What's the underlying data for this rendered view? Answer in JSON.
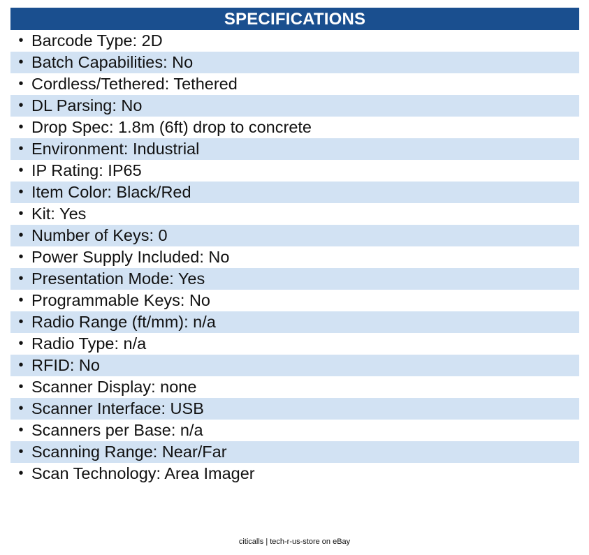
{
  "header": {
    "title": "SPECIFICATIONS"
  },
  "bullet_glyph": "•",
  "specs": [
    "Barcode Type: 2D",
    "Batch Capabilities: No",
    "Cordless/Tethered: Tethered",
    "DL Parsing: No",
    "Drop Spec: 1.8m (6ft) drop to concrete",
    "Environment: Industrial",
    "IP Rating: IP65",
    "Item Color: Black/Red",
    "Kit: Yes",
    "Number of Keys: 0",
    "Power Supply Included: No",
    "Presentation Mode: Yes",
    "Programmable Keys: No",
    "Radio Range (ft/mm): n/a",
    "Radio Type: n/a",
    "RFID: No",
    "Scanner Display: none",
    "Scanner Interface: USB",
    "Scanners per Base: n/a",
    "Scanning Range: Near/Far",
    "Scan Technology: Area Imager"
  ],
  "footer": {
    "text": "citicalls | tech-r-us-store on eBay"
  },
  "colors": {
    "header_bg": "#1a4f8f",
    "header_text": "#ffffff",
    "stripe_bg": "#d2e2f3"
  }
}
